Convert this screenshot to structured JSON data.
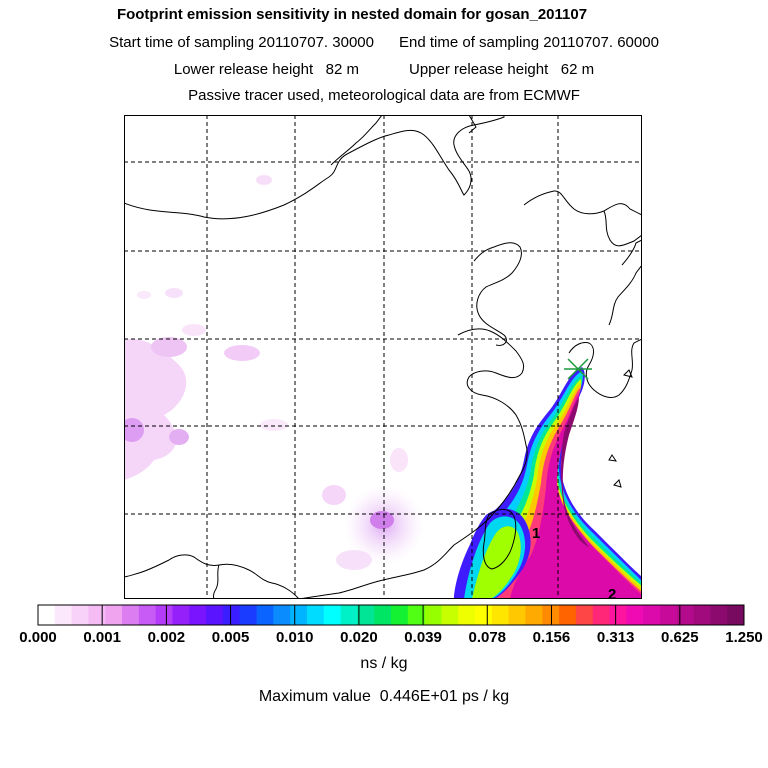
{
  "header": {
    "title": "Footprint emission sensitivity in nested domain for gosan_201107",
    "start_label": "Start time of sampling 20110707. 30000",
    "end_label": "End time of sampling 20110707. 60000",
    "lower_label": "Lower release height   82 m",
    "upper_label": "Upper release height   62 m",
    "info": "Passive tracer used, meteorological data are from ECMWF"
  },
  "map": {
    "markers": [
      {
        "label": "1"
      },
      {
        "label": "2"
      }
    ],
    "receptor_icon": "x-marker-icon"
  },
  "colorbar": {
    "colors": [
      "#ffffff",
      "#fce8fc",
      "#f8d2f8",
      "#f4bbf4",
      "#f0a4f0",
      "#dc7ef2",
      "#c85af5",
      "#b43cf8",
      "#9620fa",
      "#7a14ff",
      "#5a14ff",
      "#3a1eff",
      "#1a3cff",
      "#0a64ff",
      "#0a8cff",
      "#00b4ff",
      "#00dcff",
      "#00ffff",
      "#00f0c8",
      "#00e696",
      "#00e664",
      "#14f032",
      "#50ff14",
      "#96ff00",
      "#c8ff00",
      "#f0ff00",
      "#ffff00",
      "#ffe600",
      "#ffc800",
      "#ffaa00",
      "#ff8c00",
      "#ff6400",
      "#ff4646",
      "#ff2878",
      "#ff14a0",
      "#f00ab4",
      "#dc0aaa",
      "#c80a9b",
      "#b40a8c",
      "#a00a7d",
      "#8c0a6e",
      "#780a5f"
    ],
    "labels": [
      "0.000",
      "0.001",
      "0.002",
      "0.005",
      "0.010",
      "0.020",
      "0.039",
      "0.078",
      "0.156",
      "0.313",
      "0.625",
      "1.250"
    ],
    "unit": "ns / kg"
  },
  "footer": {
    "max_value": "Maximum value  0.446E+01 ps / kg"
  }
}
